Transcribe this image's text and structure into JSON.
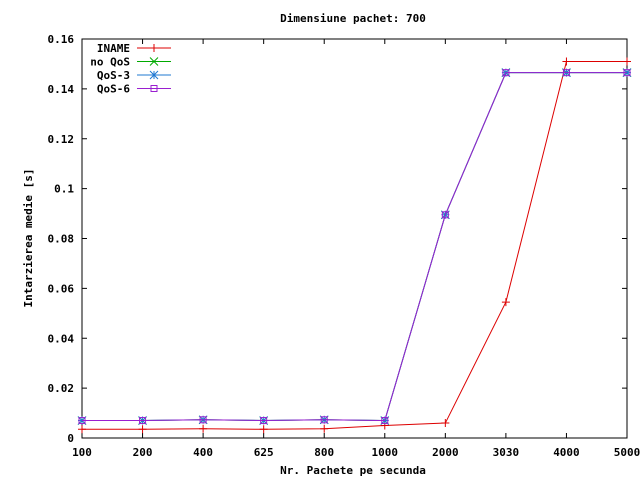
{
  "chart_data": {
    "type": "line",
    "title": "Dimensiune pachet: 700",
    "xlabel": "Nr. Pachete pe secunda",
    "ylabel": "Intarzierea medie [s]",
    "categories": [
      "100",
      "200",
      "400",
      "625",
      "800",
      "1000",
      "2000",
      "3030",
      "4000",
      "5000"
    ],
    "ylim": [
      0,
      0.16
    ],
    "yticks": [
      "0",
      "0.02",
      "0.04",
      "0.06",
      "0.08",
      "0.1",
      "0.12",
      "0.14",
      "0.16"
    ],
    "grid": false,
    "legend_position": "top-left",
    "series": [
      {
        "name": "INAME",
        "color": "#dd0000",
        "marker": "plus",
        "values": [
          0.0035,
          0.0035,
          0.0037,
          0.0035,
          0.0037,
          0.005,
          0.006,
          0.0545,
          0.151,
          0.151
        ]
      },
      {
        "name": "no QoS",
        "color": "#00aa00",
        "marker": "cross",
        "values": [
          0.007,
          0.007,
          0.0073,
          0.007,
          0.0073,
          0.007,
          0.0895,
          0.1465,
          0.1465,
          0.1465
        ]
      },
      {
        "name": "QoS-3",
        "color": "#1f78d2",
        "marker": "star",
        "values": [
          0.007,
          0.007,
          0.0073,
          0.007,
          0.0073,
          0.007,
          0.0895,
          0.1465,
          0.1465,
          0.1465
        ]
      },
      {
        "name": "QoS-6",
        "color": "#9a1fd0",
        "marker": "square",
        "values": [
          0.007,
          0.007,
          0.0073,
          0.007,
          0.0073,
          0.007,
          0.0895,
          0.1465,
          0.1465,
          0.1465
        ]
      }
    ]
  }
}
